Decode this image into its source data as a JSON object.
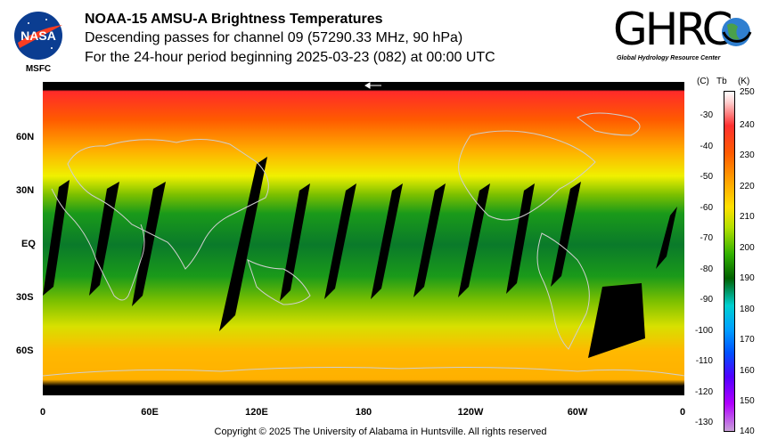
{
  "title": {
    "line1": "NOAA-15 AMSU-A Brightness Temperatures",
    "line2": "Descending passes for channel 09 (57290.33 MHz, 90 hPa)",
    "line3": "For the 24-hour period beginning 2025-03-23 (082) at 00:00 UTC"
  },
  "logos": {
    "nasa_word": "NASA",
    "nasa_caption": "MSFC",
    "ghrc_word": "GHRC",
    "ghrc_caption": "Global Hydrology Resource Center"
  },
  "map": {
    "lat_labels": [
      "60N",
      "30N",
      "EQ",
      "30S",
      "60S"
    ],
    "lon_labels": [
      "0",
      "60E",
      "120E",
      "180",
      "120W",
      "60W",
      "0"
    ]
  },
  "colorbar": {
    "header_c": "(C)",
    "header_tb": "Tb",
    "header_k": "(K)",
    "celsius_ticks": [
      "-30",
      "-40",
      "-50",
      "-60",
      "-70",
      "-80",
      "-90",
      "-100",
      "-110",
      "-120",
      "-130"
    ],
    "kelvin_ticks": [
      "250",
      "240",
      "230",
      "220",
      "210",
      "200",
      "190",
      "180",
      "170",
      "160",
      "150",
      "140"
    ]
  },
  "footer": {
    "copyright": "Copyright © 2025 The University of Alabama in Huntsville.  All rights reserved"
  }
}
